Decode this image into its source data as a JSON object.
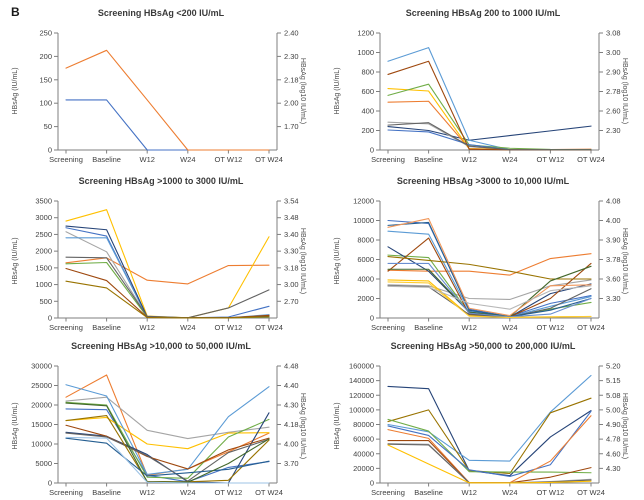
{
  "panel_label": "B",
  "chart_data": [
    {
      "type": "line",
      "title": "Screening HBsAg <200 IU/mL",
      "ylabel_left": "HBsAg (IU/mL)",
      "ylabel_right": "HBsAg (log10 IU/mL)",
      "categories": [
        "Screening",
        "Baseline",
        "W12",
        "W24",
        "OT W12",
        "OT W24"
      ],
      "ylim": [
        0,
        250
      ],
      "left_ticks": [
        0,
        50,
        100,
        150,
        200,
        250
      ],
      "right_ticks": [
        {
          "pos": 250,
          "label": "2.40"
        },
        {
          "pos": 200,
          "label": "2.30"
        },
        {
          "pos": 150,
          "label": "2.18"
        },
        {
          "pos": 100,
          "label": "2.00"
        },
        {
          "pos": 50,
          "label": "1.70"
        }
      ],
      "series": [
        {
          "color": "#4472C4",
          "values": [
            107,
            107,
            0,
            0,
            0,
            0
          ]
        },
        {
          "color": "#ED7D31",
          "values": [
            175,
            213,
            107,
            0,
            0,
            0
          ]
        }
      ]
    },
    {
      "type": "line",
      "title": "Screening HBsAg 200 to 1000 IU/mL",
      "ylabel_left": "HBsAg (IU/mL)",
      "ylabel_right": "HBsAg (log10 IU/mL)",
      "categories": [
        "Screening",
        "Baseline",
        "W12",
        "W24",
        "OT W12",
        "OT W24"
      ],
      "ylim": [
        0,
        1200
      ],
      "left_ticks": [
        0,
        200,
        400,
        600,
        800,
        1000,
        1200
      ],
      "right_ticks": [
        {
          "pos": 1200,
          "label": "3.08"
        },
        {
          "pos": 1000,
          "label": "3.00"
        },
        {
          "pos": 800,
          "label": "2.90"
        },
        {
          "pos": 600,
          "label": "2.78"
        },
        {
          "pos": 400,
          "label": "2.60"
        },
        {
          "pos": 200,
          "label": "2.30"
        }
      ],
      "series": [
        {
          "color": "#264478",
          "values": [
            240,
            200,
            100,
            148,
            196,
            245
          ]
        },
        {
          "color": "#ED7D31",
          "values": [
            490,
            500,
            15,
            5,
            5,
            8
          ]
        },
        {
          "color": "#A5A5A5",
          "values": [
            285,
            268,
            35,
            3,
            2,
            2
          ]
        },
        {
          "color": "#FFC000",
          "values": [
            630,
            605,
            12,
            4,
            3,
            5
          ]
        },
        {
          "color": "#5B9BD5",
          "values": [
            910,
            1050,
            100,
            2,
            2,
            2
          ]
        },
        {
          "color": "#70AD47",
          "values": [
            560,
            675,
            52,
            18,
            6,
            4
          ]
        },
        {
          "color": "#4472C4",
          "values": [
            205,
            185,
            55,
            2,
            1,
            1
          ]
        },
        {
          "color": "#9E480E",
          "values": [
            775,
            910,
            8,
            2,
            1,
            1
          ]
        },
        {
          "color": "#636363",
          "values": [
            255,
            280,
            40,
            3,
            2,
            2
          ]
        }
      ]
    },
    {
      "type": "line",
      "title": "Screening HBsAg >1000 to 3000 IU/mL",
      "ylabel_left": "HBsAg (IU/mL)",
      "ylabel_right": "HBsAg (log10 IU/mL)",
      "categories": [
        "Screening",
        "Baseline",
        "W12",
        "W24",
        "OT W12",
        "OT W24"
      ],
      "ylim": [
        0,
        3500
      ],
      "left_ticks": [
        0,
        500,
        1000,
        1500,
        2000,
        2500,
        3000,
        3500
      ],
      "right_ticks": [
        {
          "pos": 3500,
          "label": "3.54"
        },
        {
          "pos": 3000,
          "label": "3.48"
        },
        {
          "pos": 2500,
          "label": "3.40"
        },
        {
          "pos": 2000,
          "label": "3.30"
        },
        {
          "pos": 1500,
          "label": "3.18"
        },
        {
          "pos": 1000,
          "label": "3.00"
        },
        {
          "pos": 500,
          "label": "2.70"
        }
      ],
      "series": [
        {
          "color": "#4472C4",
          "values": [
            2700,
            2450,
            25,
            5,
            30,
            350
          ]
        },
        {
          "color": "#ED7D31",
          "values": [
            1650,
            1800,
            1130,
            1020,
            1570,
            1580
          ]
        },
        {
          "color": "#A5A5A5",
          "values": [
            2580,
            1980,
            40,
            5,
            10,
            50
          ]
        },
        {
          "color": "#FFC000",
          "values": [
            2900,
            3240,
            60,
            5,
            300,
            2430
          ]
        },
        {
          "color": "#5B9BD5",
          "values": [
            2400,
            2400,
            30,
            5,
            5,
            100
          ]
        },
        {
          "color": "#70AD47",
          "values": [
            1620,
            1660,
            30,
            5,
            5,
            30
          ]
        },
        {
          "color": "#264478",
          "values": [
            2750,
            2640,
            35,
            5,
            10,
            60
          ]
        },
        {
          "color": "#9E480E",
          "values": [
            1480,
            1120,
            20,
            5,
            5,
            80
          ]
        },
        {
          "color": "#636363",
          "values": [
            1820,
            1800,
            50,
            5,
            300,
            840
          ]
        },
        {
          "color": "#997300",
          "values": [
            1100,
            900,
            12,
            3,
            3,
            40
          ]
        }
      ]
    },
    {
      "type": "line",
      "title": "Screening HBsAg >3000 to 10,000 IU/mL",
      "ylabel_left": "HBsAg (IU/mL)",
      "ylabel_right": "HBsAg (log10 IU/mL)",
      "categories": [
        "Screening",
        "Baseline",
        "W12",
        "W24",
        "OT W12",
        "OT W24"
      ],
      "ylim": [
        0,
        12000
      ],
      "left_ticks": [
        0,
        2000,
        4000,
        6000,
        8000,
        10000,
        12000
      ],
      "right_ticks": [
        {
          "pos": 12000,
          "label": "4.08"
        },
        {
          "pos": 10000,
          "label": "4.00"
        },
        {
          "pos": 8000,
          "label": "3.90"
        },
        {
          "pos": 6000,
          "label": "3.78"
        },
        {
          "pos": 4000,
          "label": "3.60"
        },
        {
          "pos": 2000,
          "label": "3.30"
        }
      ],
      "series": [
        {
          "color": "#4472C4",
          "values": [
            10000,
            9700,
            900,
            150,
            1500,
            2300
          ]
        },
        {
          "color": "#ED7D31",
          "values": [
            4900,
            4800,
            4800,
            4400,
            6100,
            6600
          ]
        },
        {
          "color": "#A5A5A5",
          "values": [
            3400,
            3300,
            2000,
            1900,
            3300,
            3900
          ]
        },
        {
          "color": "#FFC000",
          "values": [
            3900,
            3800,
            250,
            80,
            120,
            150
          ]
        },
        {
          "color": "#5B9BD5",
          "values": [
            8900,
            8600,
            700,
            120,
            1200,
            2200
          ]
        },
        {
          "color": "#70AD47",
          "values": [
            6450,
            6200,
            500,
            100,
            900,
            1600
          ]
        },
        {
          "color": "#264478",
          "values": [
            7300,
            4800,
            600,
            100,
            2500,
            3500
          ]
        },
        {
          "color": "#9E480E",
          "values": [
            4800,
            8200,
            400,
            120,
            2000,
            5600
          ]
        },
        {
          "color": "#636363",
          "values": [
            3300,
            3200,
            350,
            100,
            1000,
            3000
          ]
        },
        {
          "color": "#997300",
          "values": [
            6300,
            5900,
            5500,
            4800,
            4000,
            4000
          ]
        },
        {
          "color": "#255E91",
          "values": [
            9500,
            9800,
            800,
            120,
            800,
            2000
          ]
        },
        {
          "color": "#43682B",
          "values": [
            5000,
            5000,
            600,
            120,
            3800,
            5300
          ]
        },
        {
          "color": "#F1975A",
          "values": [
            9300,
            10200,
            1000,
            250,
            3300,
            3400
          ]
        },
        {
          "color": "#698ED0",
          "values": [
            5600,
            5600,
            500,
            120,
            400,
            2000
          ]
        },
        {
          "color": "#FFCD33",
          "values": [
            3700,
            3600,
            180,
            60,
            100,
            160
          ]
        },
        {
          "color": "#B7B7B7",
          "values": [
            3250,
            3150,
            1500,
            900,
            2800,
            3300
          ]
        }
      ]
    },
    {
      "type": "line",
      "title": "Screening HBsAg >10,000 to 50,000 IU/mL",
      "ylabel_left": "HBsAg (IU/mL)",
      "ylabel_right": "HBsAg (log10 IU/mL)",
      "categories": [
        "Screening",
        "Baseline",
        "W12",
        "W24",
        "OT W12",
        "OT W24"
      ],
      "ylim": [
        0,
        30000
      ],
      "left_ticks": [
        0,
        5000,
        10000,
        15000,
        20000,
        25000,
        30000
      ],
      "right_ticks": [
        {
          "pos": 30000,
          "label": "4.48"
        },
        {
          "pos": 25000,
          "label": "4.40"
        },
        {
          "pos": 20000,
          "label": "4.30"
        },
        {
          "pos": 15000,
          "label": "4.18"
        },
        {
          "pos": 10000,
          "label": "4.00"
        },
        {
          "pos": 5000,
          "label": "3.70"
        }
      ],
      "series": [
        {
          "color": "#4472C4",
          "values": [
            19000,
            18800,
            2000,
            300,
            4000,
            5500
          ]
        },
        {
          "color": "#ED7D31",
          "values": [
            22000,
            27700,
            2000,
            3600,
            8000,
            12800
          ]
        },
        {
          "color": "#A5A5A5",
          "values": [
            21000,
            22000,
            13500,
            11400,
            13000,
            14300
          ]
        },
        {
          "color": "#FFC000",
          "values": [
            16000,
            16800,
            10000,
            8800,
            12800,
            12900
          ]
        },
        {
          "color": "#5B9BD5",
          "values": [
            25200,
            22300,
            2200,
            3500,
            17000,
            24700
          ]
        },
        {
          "color": "#70AD47",
          "values": [
            20700,
            20000,
            1500,
            1200,
            11800,
            16300
          ]
        },
        {
          "color": "#264478",
          "values": [
            13000,
            12000,
            7300,
            300,
            0,
            18000
          ]
        },
        {
          "color": "#9E480E",
          "values": [
            14800,
            12000,
            6800,
            3600,
            8500,
            11500
          ]
        },
        {
          "color": "#636363",
          "values": [
            12800,
            11800,
            7000,
            500,
            7800,
            11200
          ]
        },
        {
          "color": "#997300",
          "values": [
            16000,
            17300,
            400,
            300,
            700,
            11000
          ]
        },
        {
          "color": "#255E91",
          "values": [
            11500,
            10200,
            1800,
            2600,
            3500,
            5600
          ]
        },
        {
          "color": "#43682B",
          "values": [
            20500,
            19800,
            300,
            200,
            5000,
            11300
          ]
        },
        {
          "color": "#9DC3E6",
          "values": [
            11700,
            11500,
            200,
            0,
            0,
            0
          ]
        }
      ]
    },
    {
      "type": "line",
      "title": "Screening HBsAg >50,000 to 200,000 IU/mL",
      "ylabel_left": "HBsAg (IU/mL)",
      "ylabel_right": "HBsAg (log10 IU/mL)",
      "categories": [
        "Screening",
        "Baseline",
        "W12",
        "W24",
        "OT W12",
        "OT W24"
      ],
      "ylim": [
        0,
        160000
      ],
      "left_ticks": [
        0,
        20000,
        40000,
        60000,
        80000,
        100000,
        120000,
        140000,
        160000
      ],
      "right_ticks": [
        {
          "pos": 160000,
          "label": "5.20"
        },
        {
          "pos": 140000,
          "label": "5.15"
        },
        {
          "pos": 120000,
          "label": "5.08"
        },
        {
          "pos": 100000,
          "label": "5.00"
        },
        {
          "pos": 80000,
          "label": "4.90"
        },
        {
          "pos": 60000,
          "label": "4.78"
        },
        {
          "pos": 40000,
          "label": "4.60"
        },
        {
          "pos": 20000,
          "label": "4.30"
        }
      ],
      "series": [
        {
          "color": "#264478",
          "values": [
            132000,
            129000,
            17000,
            10000,
            63000,
            99000
          ]
        },
        {
          "color": "#5B9BD5",
          "values": [
            80000,
            70000,
            31000,
            30000,
            97000,
            147000
          ]
        },
        {
          "color": "#997300",
          "values": [
            84000,
            100000,
            17000,
            13000,
            96000,
            116000
          ]
        },
        {
          "color": "#70AD47",
          "values": [
            87000,
            71000,
            15500,
            15000,
            15000,
            14000
          ]
        },
        {
          "color": "#4472C4",
          "values": [
            78000,
            65000,
            18000,
            9000,
            25000,
            98000
          ]
        },
        {
          "color": "#ED7D31",
          "values": [
            73000,
            61000,
            600,
            300,
            30000,
            92000
          ]
        },
        {
          "color": "#9E480E",
          "values": [
            58000,
            58000,
            500,
            200,
            8000,
            21000
          ]
        },
        {
          "color": "#A5A5A5",
          "values": [
            54000,
            53000,
            300,
            100,
            2000,
            5000
          ]
        },
        {
          "color": "#636363",
          "values": [
            53000,
            52000,
            250,
            100,
            1500,
            4000
          ]
        },
        {
          "color": "#FFC000",
          "values": [
            52000,
            26000,
            200,
            100,
            800,
            2500
          ]
        }
      ]
    }
  ]
}
